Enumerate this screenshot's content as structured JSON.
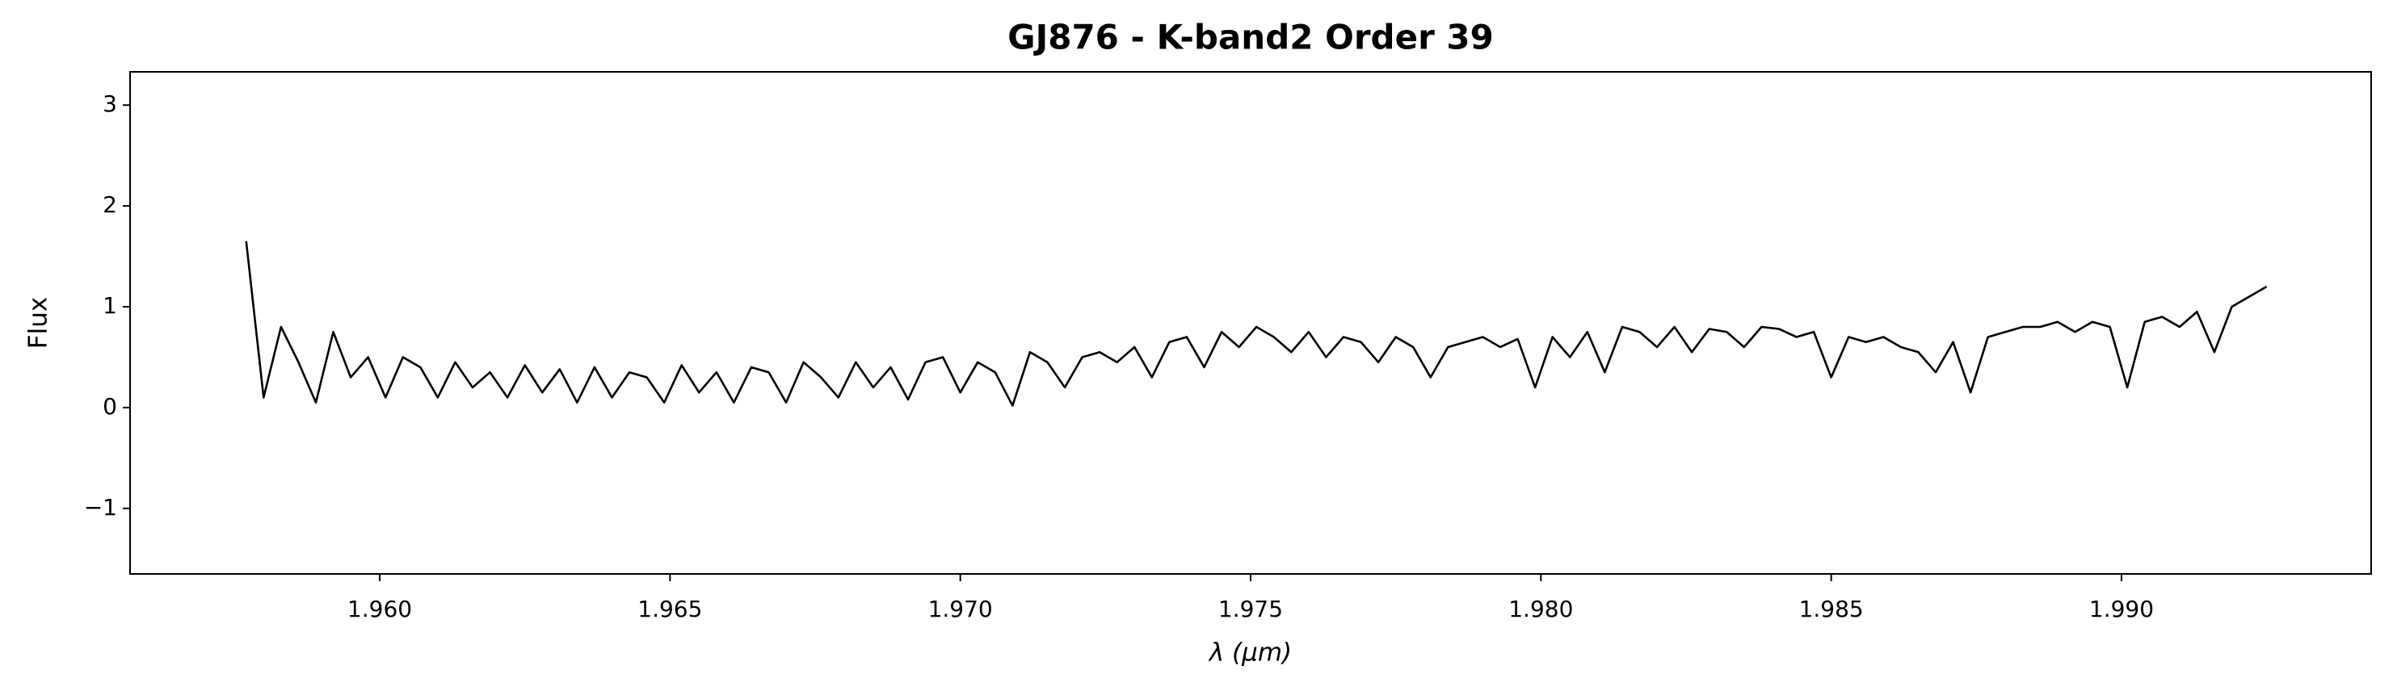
{
  "chart_data": {
    "type": "line",
    "title": "GJ876 - K-band2 Order 39",
    "xlabel": "λ (μm)",
    "ylabel": "Flux",
    "x": [
      1.9577,
      1.958,
      1.9583,
      1.9586,
      1.9589,
      1.9592,
      1.9595,
      1.9598,
      1.9601,
      1.9604,
      1.9607,
      1.961,
      1.9613,
      1.9616,
      1.9619,
      1.9622,
      1.9625,
      1.9628,
      1.9631,
      1.9634,
      1.9637,
      1.964,
      1.9643,
      1.9646,
      1.9649,
      1.9652,
      1.9655,
      1.9658,
      1.9661,
      1.9664,
      1.9667,
      1.967,
      1.9673,
      1.9676,
      1.9679,
      1.9682,
      1.9685,
      1.9688,
      1.9691,
      1.9694,
      1.9697,
      1.97,
      1.9703,
      1.9706,
      1.9709,
      1.9712,
      1.9715,
      1.9718,
      1.9721,
      1.9724,
      1.9727,
      1.973,
      1.9733,
      1.9736,
      1.9739,
      1.9742,
      1.9745,
      1.9748,
      1.9751,
      1.9754,
      1.9757,
      1.976,
      1.9763,
      1.9766,
      1.9769,
      1.9772,
      1.9775,
      1.9778,
      1.9781,
      1.9784,
      1.9787,
      1.979,
      1.9793,
      1.9796,
      1.9799,
      1.9802,
      1.9805,
      1.9808,
      1.9811,
      1.9814,
      1.9817,
      1.982,
      1.9823,
      1.9826,
      1.9829,
      1.9832,
      1.9835,
      1.9838,
      1.9841,
      1.9844,
      1.9847,
      1.985,
      1.9853,
      1.9856,
      1.9859,
      1.9862,
      1.9865,
      1.9868,
      1.9871,
      1.9874,
      1.9877,
      1.988,
      1.9883,
      1.9886,
      1.9889,
      1.9892,
      1.9895,
      1.9898,
      1.9901,
      1.9904,
      1.9907,
      1.991,
      1.9913,
      1.9916,
      1.9919,
      1.9922,
      1.9925
    ],
    "series": [
      {
        "color": "#000000",
        "values": [
          1.65,
          0.1,
          0.8,
          0.45,
          0.05,
          0.75,
          0.3,
          0.5,
          0.1,
          0.5,
          0.4,
          0.1,
          0.45,
          0.2,
          0.35,
          0.1,
          0.42,
          0.15,
          0.38,
          0.05,
          0.4,
          0.1,
          0.35,
          0.3,
          0.05,
          0.42,
          0.15,
          0.35,
          0.05,
          0.4,
          0.35,
          0.05,
          0.45,
          0.3,
          0.1,
          0.45,
          0.2,
          0.4,
          0.08,
          0.45,
          0.5,
          0.15,
          0.45,
          0.35,
          0.02,
          0.55,
          0.45,
          0.2,
          0.5,
          0.55,
          0.45,
          0.6,
          0.3,
          0.65,
          0.7,
          0.4,
          0.75,
          0.6,
          0.8,
          0.7,
          0.55,
          0.75,
          0.5,
          0.7,
          0.65,
          0.45,
          0.7,
          0.6,
          0.3,
          0.6,
          0.65,
          0.7,
          0.6,
          0.68,
          0.2,
          0.7,
          0.5,
          0.75,
          0.35,
          0.8,
          0.75,
          0.6,
          0.8,
          0.55,
          0.78,
          0.75,
          0.6,
          0.8,
          0.78,
          0.7,
          0.75,
          0.3,
          0.7,
          0.65,
          0.7,
          0.6,
          0.55,
          0.35,
          0.65,
          0.15,
          0.7,
          0.75,
          0.8,
          0.8,
          0.85,
          0.75,
          0.85,
          0.8,
          0.2,
          0.85,
          0.9,
          0.8,
          0.95,
          0.55,
          1.0,
          1.1,
          1.2
        ]
      }
    ],
    "xlim": [
      1.9557,
      1.9943
    ],
    "ylim": [
      -1.65,
      3.33
    ],
    "xticks": [
      {
        "value": 1.96,
        "label": "1.960"
      },
      {
        "value": 1.965,
        "label": "1.965"
      },
      {
        "value": 1.97,
        "label": "1.970"
      },
      {
        "value": 1.975,
        "label": "1.975"
      },
      {
        "value": 1.98,
        "label": "1.980"
      },
      {
        "value": 1.985,
        "label": "1.985"
      },
      {
        "value": 1.99,
        "label": "1.990"
      }
    ],
    "yticks": [
      {
        "value": -1,
        "label": "−1"
      },
      0,
      1,
      2,
      3
    ]
  }
}
